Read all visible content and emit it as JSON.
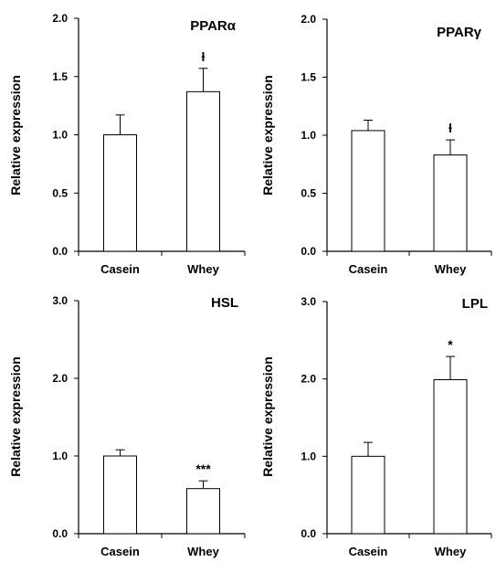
{
  "chart_data": [
    {
      "type": "bar",
      "title": "PPARα",
      "ylabel": "Relative expression",
      "xlabel": "",
      "categories": [
        "Casein",
        "Whey"
      ],
      "values": [
        1.0,
        1.37
      ],
      "errors": [
        0.17,
        0.2
      ],
      "significance": [
        "",
        "ƚ"
      ],
      "ylim": [
        0,
        2.0
      ],
      "yticks": [
        "0.0",
        "0.5",
        "1.0",
        "1.5",
        "2.0"
      ],
      "grid": false,
      "bar_color": "#ffffff"
    },
    {
      "type": "bar",
      "title": "PPARγ",
      "ylabel": "Relative expression",
      "xlabel": "",
      "categories": [
        "Casein",
        "Whey"
      ],
      "values": [
        1.04,
        0.83
      ],
      "errors": [
        0.09,
        0.13
      ],
      "significance": [
        "",
        "ƚ"
      ],
      "ylim": [
        0,
        2.0
      ],
      "yticks": [
        "0.0",
        "0.5",
        "1.0",
        "1.5",
        "2.0"
      ],
      "grid": false,
      "bar_color": "#ffffff"
    },
    {
      "type": "bar",
      "title": "HSL",
      "ylabel": "Relative expression",
      "xlabel": "",
      "categories": [
        "Casein",
        "Whey"
      ],
      "values": [
        1.0,
        0.58
      ],
      "errors": [
        0.08,
        0.1
      ],
      "significance": [
        "",
        "***"
      ],
      "ylim": [
        0,
        3.0
      ],
      "yticks": [
        "0.0",
        "1.0",
        "2.0",
        "3.0"
      ],
      "grid": false,
      "bar_color": "#ffffff"
    },
    {
      "type": "bar",
      "title": "LPL",
      "ylabel": "Relative expression",
      "xlabel": "",
      "categories": [
        "Casein",
        "Whey"
      ],
      "values": [
        1.0,
        1.99
      ],
      "errors": [
        0.18,
        0.3
      ],
      "significance": [
        "",
        "*"
      ],
      "ylim": [
        0,
        3.0
      ],
      "yticks": [
        "0.0",
        "1.0",
        "2.0",
        "3.0"
      ],
      "grid": false,
      "bar_color": "#ffffff"
    }
  ]
}
